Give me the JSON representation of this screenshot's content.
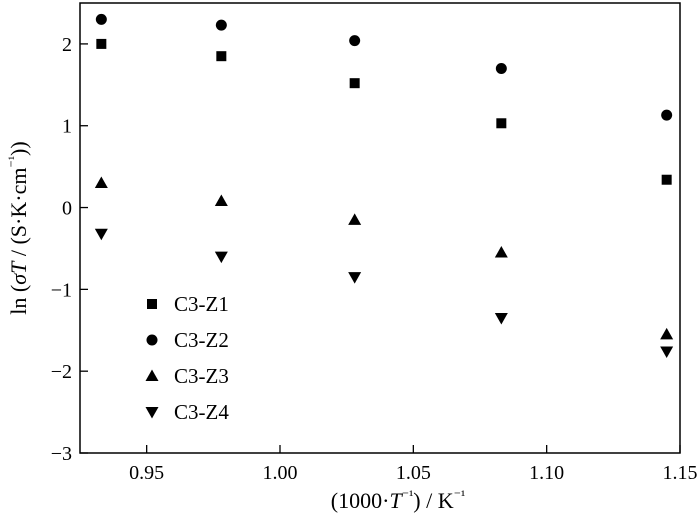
{
  "chart_data": {
    "type": "scatter",
    "title": "",
    "xlabel_parts": [
      "(1000·",
      "T",
      "⁻¹",
      ") / K",
      "⁻¹"
    ],
    "ylabel_parts": [
      "ln (",
      "σT",
      " / (S·K·cm",
      "⁻¹",
      "))"
    ],
    "xlim": [
      0.925,
      1.15
    ],
    "ylim": [
      -3,
      2.5
    ],
    "xticks": [
      0.95,
      1.0,
      1.05,
      1.1,
      1.15
    ],
    "xtick_labels": [
      "0.95",
      "1.00",
      "1.05",
      "1.10",
      "1.15"
    ],
    "yticks": [
      -3,
      -2,
      -1,
      0,
      1,
      2
    ],
    "ytick_labels": [
      "−3",
      "−2",
      "−1",
      "0",
      "1",
      "2"
    ],
    "grid": false,
    "legend_position": "bottom-left",
    "x": [
      0.933,
      0.978,
      1.028,
      1.083,
      1.145
    ],
    "series": [
      {
        "name": "C3-Z1",
        "marker": "square",
        "values": [
          2.0,
          1.85,
          1.52,
          1.03,
          0.34
        ]
      },
      {
        "name": "C3-Z2",
        "marker": "circle",
        "values": [
          2.3,
          2.23,
          2.04,
          1.7,
          1.13
        ]
      },
      {
        "name": "C3-Z3",
        "marker": "triangle-up",
        "values": [
          0.3,
          0.08,
          -0.15,
          -0.55,
          -1.55
        ]
      },
      {
        "name": "C3-Z4",
        "marker": "triangle-down",
        "values": [
          -0.32,
          -0.6,
          -0.85,
          -1.35,
          -1.76
        ]
      }
    ]
  }
}
